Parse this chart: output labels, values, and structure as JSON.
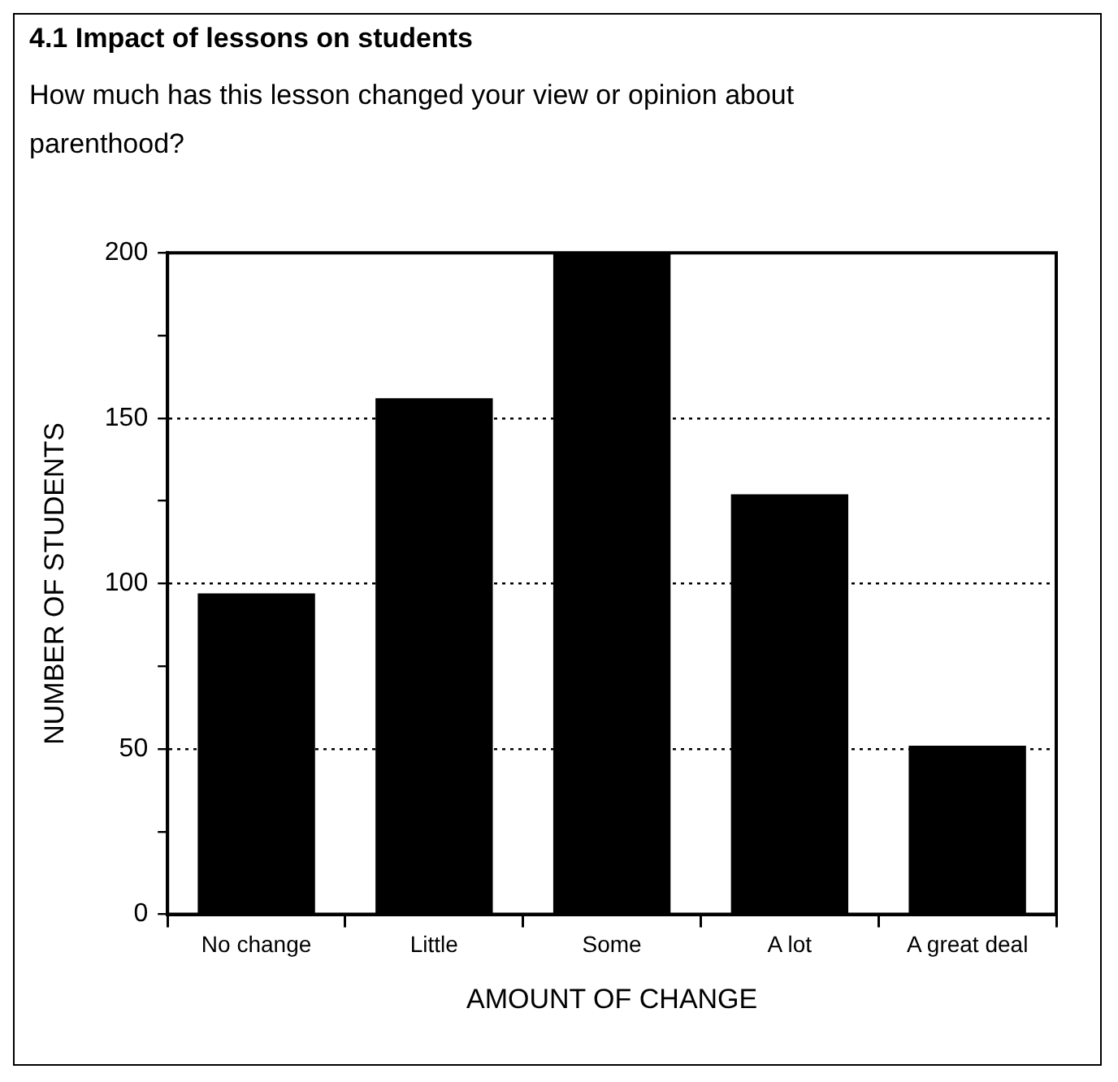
{
  "chart_data": {
    "type": "bar",
    "title": "4.1 Impact of lessons on students",
    "subtitle": "How much has this lesson changed your view or opinion about parenthood?",
    "xlabel": "AMOUNT OF CHANGE",
    "ylabel": "NUMBER OF STUDENTS",
    "categories": [
      "No change",
      "Little",
      "Some",
      "A lot",
      "A great deal"
    ],
    "values": [
      97,
      156,
      200,
      127,
      51
    ],
    "color": "#000000",
    "ylim": [
      0,
      200
    ],
    "yticks": [
      0,
      {
        "value": 25,
        "label": null
      },
      50,
      {
        "value": 75,
        "label": null
      },
      100,
      {
        "value": 125,
        "label": null
      },
      150,
      {
        "value": 175,
        "label": null
      },
      200
    ],
    "grid": "y"
  }
}
